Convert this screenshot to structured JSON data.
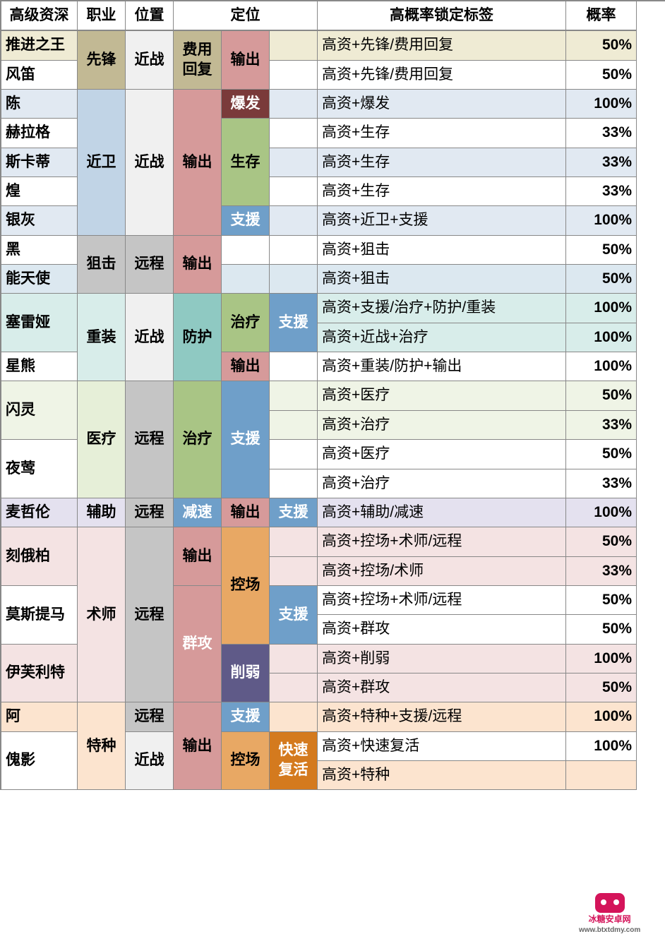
{
  "colors": {
    "hdr": "#ffffff",
    "white": "#ffffff",
    "tanLight": "#efebd4",
    "tanDark": "#c2b994",
    "grayLight": "#f0f0f0",
    "grayMed": "#c5c5c5",
    "blueVLight": "#e1e9f2",
    "blueLight": "#c1d4e6",
    "bluePale": "#dce8f0",
    "blueMid": "#6f9fc9",
    "pinkMed": "#d69a9a",
    "pinkPale": "#f4e3e3",
    "brownDark": "#7a3a3a",
    "greenPale": "#e6efd8",
    "greenMed": "#a9c585",
    "greenVPale": "#eff4e6",
    "tealPale": "#d8edea",
    "tealMed": "#8fc9c2",
    "orangePale": "#fce4cf",
    "orangeMed": "#e8a864",
    "orangeDark": "#d47a1e",
    "purpleMed": "#5f5a88",
    "lavPale": "#e4e1ef"
  },
  "headers": [
    "高级资深",
    "职业",
    "位置",
    "定位",
    "高概率锁定标签",
    "概率"
  ],
  "logo": {
    "name": "冰糖安卓网",
    "url": "www.btxtdmy.com"
  },
  "cells": [
    {
      "r": 1,
      "c": 1,
      "rs": 1,
      "cs": 1,
      "t": "高级资深",
      "cls": "hdr"
    },
    {
      "r": 1,
      "c": 2,
      "rs": 1,
      "cs": 1,
      "t": "职业",
      "cls": "hdr"
    },
    {
      "r": 1,
      "c": 3,
      "rs": 1,
      "cs": 1,
      "t": "位置",
      "cls": "hdr"
    },
    {
      "r": 1,
      "c": 4,
      "rs": 1,
      "cs": 3,
      "t": "定位",
      "cls": "hdr"
    },
    {
      "r": 1,
      "c": 7,
      "rs": 1,
      "cs": 1,
      "t": "高概率锁定标签",
      "cls": "hdr"
    },
    {
      "r": 1,
      "c": 8,
      "rs": 1,
      "cs": 1,
      "t": "概率",
      "cls": "hdr"
    },
    {
      "r": 2,
      "c": 1,
      "rs": 1,
      "cs": 1,
      "t": "推进之王",
      "bg": "tanLight",
      "cls": "bold"
    },
    {
      "r": 2,
      "c": 2,
      "rs": 2,
      "cs": 1,
      "t": "先锋",
      "bg": "tanDark",
      "cls": "ctr bold"
    },
    {
      "r": 2,
      "c": 3,
      "rs": 2,
      "cs": 1,
      "t": "近战",
      "bg": "grayLight",
      "cls": "ctr bold"
    },
    {
      "r": 2,
      "c": 4,
      "rs": 2,
      "cs": 1,
      "t": "费用回复",
      "bg": "tanDark",
      "cls": "ctr bold"
    },
    {
      "r": 2,
      "c": 5,
      "rs": 2,
      "cs": 1,
      "t": "输出",
      "bg": "pinkMed",
      "cls": "ctr bold"
    },
    {
      "r": 2,
      "c": 6,
      "rs": 1,
      "cs": 1,
      "t": "",
      "bg": "tanLight"
    },
    {
      "r": 2,
      "c": 7,
      "rs": 1,
      "cs": 1,
      "t": "高资+先锋/费用回复",
      "bg": "tanLight"
    },
    {
      "r": 2,
      "c": 8,
      "rs": 1,
      "cs": 1,
      "t": "50%",
      "bg": "tanLight",
      "cls": "bold rt"
    },
    {
      "r": 3,
      "c": 1,
      "rs": 1,
      "cs": 1,
      "t": "风笛",
      "bg": "white",
      "cls": "bold"
    },
    {
      "r": 3,
      "c": 6,
      "rs": 1,
      "cs": 1,
      "t": "",
      "bg": "white"
    },
    {
      "r": 3,
      "c": 7,
      "rs": 1,
      "cs": 1,
      "t": "高资+先锋/费用回复",
      "bg": "white"
    },
    {
      "r": 3,
      "c": 8,
      "rs": 1,
      "cs": 1,
      "t": "50%",
      "bg": "white",
      "cls": "bold rt"
    },
    {
      "r": 4,
      "c": 1,
      "rs": 1,
      "cs": 1,
      "t": "陈",
      "bg": "blueVLight",
      "cls": "bold"
    },
    {
      "r": 4,
      "c": 2,
      "rs": 5,
      "cs": 1,
      "t": "近卫",
      "bg": "blueLight",
      "cls": "ctr bold"
    },
    {
      "r": 4,
      "c": 3,
      "rs": 5,
      "cs": 1,
      "t": "近战",
      "bg": "grayLight",
      "cls": "ctr bold"
    },
    {
      "r": 4,
      "c": 4,
      "rs": 5,
      "cs": 1,
      "t": "输出",
      "bg": "pinkMed",
      "cls": "ctr bold"
    },
    {
      "r": 4,
      "c": 5,
      "rs": 1,
      "cs": 1,
      "t": "爆发",
      "bg": "brownDark",
      "cls": "ctr bold wt"
    },
    {
      "r": 4,
      "c": 6,
      "rs": 1,
      "cs": 1,
      "t": "",
      "bg": "blueVLight"
    },
    {
      "r": 4,
      "c": 7,
      "rs": 1,
      "cs": 1,
      "t": "高资+爆发",
      "bg": "blueVLight"
    },
    {
      "r": 4,
      "c": 8,
      "rs": 1,
      "cs": 1,
      "t": "100%",
      "bg": "blueVLight",
      "cls": "bold rt"
    },
    {
      "r": 5,
      "c": 1,
      "rs": 1,
      "cs": 1,
      "t": "赫拉格",
      "bg": "white",
      "cls": "bold"
    },
    {
      "r": 5,
      "c": 5,
      "rs": 3,
      "cs": 1,
      "t": "生存",
      "bg": "greenMed",
      "cls": "ctr bold"
    },
    {
      "r": 5,
      "c": 6,
      "rs": 1,
      "cs": 1,
      "t": "",
      "bg": "white"
    },
    {
      "r": 5,
      "c": 7,
      "rs": 1,
      "cs": 1,
      "t": "高资+生存",
      "bg": "white"
    },
    {
      "r": 5,
      "c": 8,
      "rs": 1,
      "cs": 1,
      "t": "33%",
      "bg": "white",
      "cls": "bold rt"
    },
    {
      "r": 6,
      "c": 1,
      "rs": 1,
      "cs": 1,
      "t": "斯卡蒂",
      "bg": "blueVLight",
      "cls": "bold"
    },
    {
      "r": 6,
      "c": 6,
      "rs": 1,
      "cs": 1,
      "t": "",
      "bg": "blueVLight"
    },
    {
      "r": 6,
      "c": 7,
      "rs": 1,
      "cs": 1,
      "t": "高资+生存",
      "bg": "blueVLight"
    },
    {
      "r": 6,
      "c": 8,
      "rs": 1,
      "cs": 1,
      "t": "33%",
      "bg": "blueVLight",
      "cls": "bold rt"
    },
    {
      "r": 7,
      "c": 1,
      "rs": 1,
      "cs": 1,
      "t": "煌",
      "bg": "white",
      "cls": "bold"
    },
    {
      "r": 7,
      "c": 6,
      "rs": 1,
      "cs": 1,
      "t": "",
      "bg": "white"
    },
    {
      "r": 7,
      "c": 7,
      "rs": 1,
      "cs": 1,
      "t": "高资+生存",
      "bg": "white"
    },
    {
      "r": 7,
      "c": 8,
      "rs": 1,
      "cs": 1,
      "t": "33%",
      "bg": "white",
      "cls": "bold rt"
    },
    {
      "r": 8,
      "c": 1,
      "rs": 1,
      "cs": 1,
      "t": "银灰",
      "bg": "blueVLight",
      "cls": "bold"
    },
    {
      "r": 8,
      "c": 5,
      "rs": 1,
      "cs": 1,
      "t": "支援",
      "bg": "blueMid",
      "cls": "ctr bold wt"
    },
    {
      "r": 8,
      "c": 6,
      "rs": 1,
      "cs": 1,
      "t": "",
      "bg": "blueVLight"
    },
    {
      "r": 8,
      "c": 7,
      "rs": 1,
      "cs": 1,
      "t": "高资+近卫+支援",
      "bg": "blueVLight"
    },
    {
      "r": 8,
      "c": 8,
      "rs": 1,
      "cs": 1,
      "t": "100%",
      "bg": "blueVLight",
      "cls": "bold rt"
    },
    {
      "r": 9,
      "c": 1,
      "rs": 1,
      "cs": 1,
      "t": "黑",
      "bg": "white",
      "cls": "bold"
    },
    {
      "r": 9,
      "c": 2,
      "rs": 2,
      "cs": 1,
      "t": "狙击",
      "bg": "grayMed",
      "cls": "ctr bold"
    },
    {
      "r": 9,
      "c": 3,
      "rs": 2,
      "cs": 1,
      "t": "远程",
      "bg": "grayMed",
      "cls": "ctr bold"
    },
    {
      "r": 9,
      "c": 4,
      "rs": 2,
      "cs": 1,
      "t": "输出",
      "bg": "pinkMed",
      "cls": "ctr bold"
    },
    {
      "r": 9,
      "c": 5,
      "rs": 1,
      "cs": 1,
      "t": "",
      "bg": "white"
    },
    {
      "r": 9,
      "c": 6,
      "rs": 1,
      "cs": 1,
      "t": "",
      "bg": "white"
    },
    {
      "r": 9,
      "c": 7,
      "rs": 1,
      "cs": 1,
      "t": "高资+狙击",
      "bg": "white"
    },
    {
      "r": 9,
      "c": 8,
      "rs": 1,
      "cs": 1,
      "t": "50%",
      "bg": "white",
      "cls": "bold rt"
    },
    {
      "r": 10,
      "c": 1,
      "rs": 1,
      "cs": 1,
      "t": "能天使",
      "bg": "bluePale",
      "cls": "bold"
    },
    {
      "r": 10,
      "c": 5,
      "rs": 1,
      "cs": 1,
      "t": "",
      "bg": "bluePale"
    },
    {
      "r": 10,
      "c": 6,
      "rs": 1,
      "cs": 1,
      "t": "",
      "bg": "bluePale"
    },
    {
      "r": 10,
      "c": 7,
      "rs": 1,
      "cs": 1,
      "t": "高资+狙击",
      "bg": "bluePale"
    },
    {
      "r": 10,
      "c": 8,
      "rs": 1,
      "cs": 1,
      "t": "50%",
      "bg": "bluePale",
      "cls": "bold rt"
    },
    {
      "r": 11,
      "c": 1,
      "rs": 2,
      "cs": 1,
      "t": "塞雷娅",
      "bg": "tealPale",
      "cls": "bold"
    },
    {
      "r": 11,
      "c": 2,
      "rs": 3,
      "cs": 1,
      "t": "重装",
      "bg": "tealPale",
      "cls": "ctr bold"
    },
    {
      "r": 11,
      "c": 3,
      "rs": 3,
      "cs": 1,
      "t": "近战",
      "bg": "grayLight",
      "cls": "ctr bold"
    },
    {
      "r": 11,
      "c": 4,
      "rs": 3,
      "cs": 1,
      "t": "防护",
      "bg": "tealMed",
      "cls": "ctr bold"
    },
    {
      "r": 11,
      "c": 5,
      "rs": 2,
      "cs": 1,
      "t": "治疗",
      "bg": "greenMed",
      "cls": "ctr bold"
    },
    {
      "r": 11,
      "c": 6,
      "rs": 2,
      "cs": 1,
      "t": "支援",
      "bg": "blueMid",
      "cls": "ctr bold wt"
    },
    {
      "r": 11,
      "c": 7,
      "rs": 1,
      "cs": 1,
      "t": "高资+支援/治疗+防护/重装",
      "bg": "tealPale"
    },
    {
      "r": 11,
      "c": 8,
      "rs": 1,
      "cs": 1,
      "t": "100%",
      "bg": "tealPale",
      "cls": "bold rt"
    },
    {
      "r": 12,
      "c": 7,
      "rs": 1,
      "cs": 1,
      "t": "高资+近战+治疗",
      "bg": "tealPale"
    },
    {
      "r": 12,
      "c": 8,
      "rs": 1,
      "cs": 1,
      "t": "100%",
      "bg": "tealPale",
      "cls": "bold rt"
    },
    {
      "r": 13,
      "c": 1,
      "rs": 1,
      "cs": 1,
      "t": "星熊",
      "bg": "white",
      "cls": "bold"
    },
    {
      "r": 13,
      "c": 5,
      "rs": 1,
      "cs": 1,
      "t": "输出",
      "bg": "pinkMed",
      "cls": "ctr bold"
    },
    {
      "r": 13,
      "c": 6,
      "rs": 1,
      "cs": 1,
      "t": "",
      "bg": "white"
    },
    {
      "r": 13,
      "c": 7,
      "rs": 1,
      "cs": 1,
      "t": "高资+重装/防护+输出",
      "bg": "white"
    },
    {
      "r": 13,
      "c": 8,
      "rs": 1,
      "cs": 1,
      "t": "100%",
      "bg": "white",
      "cls": "bold rt"
    },
    {
      "r": 14,
      "c": 1,
      "rs": 2,
      "cs": 1,
      "t": "闪灵",
      "bg": "greenVPale",
      "cls": "bold"
    },
    {
      "r": 14,
      "c": 2,
      "rs": 4,
      "cs": 1,
      "t": "医疗",
      "bg": "greenPale",
      "cls": "ctr bold"
    },
    {
      "r": 14,
      "c": 3,
      "rs": 4,
      "cs": 1,
      "t": "远程",
      "bg": "grayMed",
      "cls": "ctr bold"
    },
    {
      "r": 14,
      "c": 4,
      "rs": 4,
      "cs": 1,
      "t": "治疗",
      "bg": "greenMed",
      "cls": "ctr bold"
    },
    {
      "r": 14,
      "c": 5,
      "rs": 4,
      "cs": 1,
      "t": "支援",
      "bg": "blueMid",
      "cls": "ctr bold wt"
    },
    {
      "r": 14,
      "c": 6,
      "rs": 1,
      "cs": 1,
      "t": "",
      "bg": "greenVPale"
    },
    {
      "r": 14,
      "c": 7,
      "rs": 1,
      "cs": 1,
      "t": "高资+医疗",
      "bg": "greenVPale"
    },
    {
      "r": 14,
      "c": 8,
      "rs": 1,
      "cs": 1,
      "t": "50%",
      "bg": "greenVPale",
      "cls": "bold rt"
    },
    {
      "r": 15,
      "c": 6,
      "rs": 1,
      "cs": 1,
      "t": "",
      "bg": "greenVPale"
    },
    {
      "r": 15,
      "c": 7,
      "rs": 1,
      "cs": 1,
      "t": "高资+治疗",
      "bg": "greenVPale"
    },
    {
      "r": 15,
      "c": 8,
      "rs": 1,
      "cs": 1,
      "t": "33%",
      "bg": "greenVPale",
      "cls": "bold rt"
    },
    {
      "r": 16,
      "c": 1,
      "rs": 2,
      "cs": 1,
      "t": "夜莺",
      "bg": "white",
      "cls": "bold"
    },
    {
      "r": 16,
      "c": 6,
      "rs": 1,
      "cs": 1,
      "t": "",
      "bg": "white"
    },
    {
      "r": 16,
      "c": 7,
      "rs": 1,
      "cs": 1,
      "t": "高资+医疗",
      "bg": "white"
    },
    {
      "r": 16,
      "c": 8,
      "rs": 1,
      "cs": 1,
      "t": "50%",
      "bg": "white",
      "cls": "bold rt"
    },
    {
      "r": 17,
      "c": 6,
      "rs": 1,
      "cs": 1,
      "t": "",
      "bg": "white"
    },
    {
      "r": 17,
      "c": 7,
      "rs": 1,
      "cs": 1,
      "t": "高资+治疗",
      "bg": "white"
    },
    {
      "r": 17,
      "c": 8,
      "rs": 1,
      "cs": 1,
      "t": "33%",
      "bg": "white",
      "cls": "bold rt"
    },
    {
      "r": 18,
      "c": 1,
      "rs": 1,
      "cs": 1,
      "t": "麦哲伦",
      "bg": "lavPale",
      "cls": "bold"
    },
    {
      "r": 18,
      "c": 2,
      "rs": 1,
      "cs": 1,
      "t": "辅助",
      "bg": "lavPale",
      "cls": "ctr bold"
    },
    {
      "r": 18,
      "c": 3,
      "rs": 1,
      "cs": 1,
      "t": "远程",
      "bg": "grayMed",
      "cls": "ctr bold"
    },
    {
      "r": 18,
      "c": 4,
      "rs": 1,
      "cs": 1,
      "t": "减速",
      "bg": "blueMid",
      "cls": "ctr bold wt"
    },
    {
      "r": 18,
      "c": 5,
      "rs": 1,
      "cs": 1,
      "t": "输出",
      "bg": "pinkMed",
      "cls": "ctr bold"
    },
    {
      "r": 18,
      "c": 6,
      "rs": 1,
      "cs": 1,
      "t": "支援",
      "bg": "blueMid",
      "cls": "ctr bold wt"
    },
    {
      "r": 18,
      "c": 7,
      "rs": 1,
      "cs": 1,
      "t": "高资+辅助/减速",
      "bg": "lavPale"
    },
    {
      "r": 18,
      "c": 8,
      "rs": 1,
      "cs": 1,
      "t": "100%",
      "bg": "lavPale",
      "cls": "bold rt"
    },
    {
      "r": 19,
      "c": 1,
      "rs": 2,
      "cs": 1,
      "t": "刻俄柏",
      "bg": "pinkPale",
      "cls": "bold"
    },
    {
      "r": 19,
      "c": 2,
      "rs": 6,
      "cs": 1,
      "t": "术师",
      "bg": "pinkPale",
      "cls": "ctr bold"
    },
    {
      "r": 19,
      "c": 3,
      "rs": 6,
      "cs": 1,
      "t": "远程",
      "bg": "grayMed",
      "cls": "ctr bold"
    },
    {
      "r": 19,
      "c": 4,
      "rs": 2,
      "cs": 1,
      "t": "输出",
      "bg": "pinkMed",
      "cls": "ctr bold"
    },
    {
      "r": 19,
      "c": 5,
      "rs": 4,
      "cs": 1,
      "t": "控场",
      "bg": "orangeMed",
      "cls": "ctr bold"
    },
    {
      "r": 19,
      "c": 6,
      "rs": 1,
      "cs": 1,
      "t": "",
      "bg": "pinkPale"
    },
    {
      "r": 19,
      "c": 7,
      "rs": 1,
      "cs": 1,
      "t": "高资+控场+术师/远程",
      "bg": "pinkPale"
    },
    {
      "r": 19,
      "c": 8,
      "rs": 1,
      "cs": 1,
      "t": "50%",
      "bg": "pinkPale",
      "cls": "bold rt"
    },
    {
      "r": 20,
      "c": 6,
      "rs": 1,
      "cs": 1,
      "t": "",
      "bg": "pinkPale"
    },
    {
      "r": 20,
      "c": 7,
      "rs": 1,
      "cs": 1,
      "t": "高资+控场/术师",
      "bg": "pinkPale"
    },
    {
      "r": 20,
      "c": 8,
      "rs": 1,
      "cs": 1,
      "t": "33%",
      "bg": "pinkPale",
      "cls": "bold rt"
    },
    {
      "r": 21,
      "c": 1,
      "rs": 2,
      "cs": 1,
      "t": "莫斯提马",
      "bg": "white",
      "cls": "bold"
    },
    {
      "r": 21,
      "c": 4,
      "rs": 4,
      "cs": 1,
      "t": "群攻",
      "bg": "pinkMed",
      "cls": "ctr bold wt"
    },
    {
      "r": 21,
      "c": 6,
      "rs": 2,
      "cs": 1,
      "t": "支援",
      "bg": "blueMid",
      "cls": "ctr bold wt"
    },
    {
      "r": 21,
      "c": 7,
      "rs": 1,
      "cs": 1,
      "t": "高资+控场+术师/远程",
      "bg": "white"
    },
    {
      "r": 21,
      "c": 8,
      "rs": 1,
      "cs": 1,
      "t": "50%",
      "bg": "white",
      "cls": "bold rt"
    },
    {
      "r": 22,
      "c": 7,
      "rs": 1,
      "cs": 1,
      "t": "高资+群攻",
      "bg": "white"
    },
    {
      "r": 22,
      "c": 8,
      "rs": 1,
      "cs": 1,
      "t": "50%",
      "bg": "white",
      "cls": "bold rt"
    },
    {
      "r": 23,
      "c": 1,
      "rs": 2,
      "cs": 1,
      "t": "伊芙利特",
      "bg": "pinkPale",
      "cls": "bold"
    },
    {
      "r": 23,
      "c": 5,
      "rs": 2,
      "cs": 1,
      "t": "削弱",
      "bg": "purpleMed",
      "cls": "ctr bold wt"
    },
    {
      "r": 23,
      "c": 6,
      "rs": 1,
      "cs": 1,
      "t": "",
      "bg": "pinkPale"
    },
    {
      "r": 23,
      "c": 7,
      "rs": 1,
      "cs": 1,
      "t": "高资+削弱",
      "bg": "pinkPale"
    },
    {
      "r": 23,
      "c": 8,
      "rs": 1,
      "cs": 1,
      "t": "100%",
      "bg": "pinkPale",
      "cls": "bold rt"
    },
    {
      "r": 24,
      "c": 6,
      "rs": 1,
      "cs": 1,
      "t": "",
      "bg": "pinkPale"
    },
    {
      "r": 24,
      "c": 7,
      "rs": 1,
      "cs": 1,
      "t": "高资+群攻",
      "bg": "pinkPale"
    },
    {
      "r": 24,
      "c": 8,
      "rs": 1,
      "cs": 1,
      "t": "50%",
      "bg": "pinkPale",
      "cls": "bold rt"
    },
    {
      "r": 25,
      "c": 1,
      "rs": 1,
      "cs": 1,
      "t": "阿",
      "bg": "orangePale",
      "cls": "bold"
    },
    {
      "r": 25,
      "c": 2,
      "rs": 3,
      "cs": 1,
      "t": "特种",
      "bg": "orangePale",
      "cls": "ctr bold"
    },
    {
      "r": 25,
      "c": 3,
      "rs": 1,
      "cs": 1,
      "t": "远程",
      "bg": "grayMed",
      "cls": "ctr bold"
    },
    {
      "r": 25,
      "c": 4,
      "rs": 3,
      "cs": 1,
      "t": "输出",
      "bg": "pinkMed",
      "cls": "ctr bold"
    },
    {
      "r": 25,
      "c": 5,
      "rs": 1,
      "cs": 1,
      "t": "支援",
      "bg": "blueMid",
      "cls": "ctr bold wt"
    },
    {
      "r": 25,
      "c": 6,
      "rs": 1,
      "cs": 1,
      "t": "",
      "bg": "orangePale"
    },
    {
      "r": 25,
      "c": 7,
      "rs": 1,
      "cs": 1,
      "t": "高资+特种+支援/远程",
      "bg": "orangePale"
    },
    {
      "r": 25,
      "c": 8,
      "rs": 1,
      "cs": 1,
      "t": "100%",
      "bg": "orangePale",
      "cls": "bold rt"
    },
    {
      "r": 26,
      "c": 1,
      "rs": 2,
      "cs": 1,
      "t": "傀影",
      "bg": "white",
      "cls": "bold"
    },
    {
      "r": 26,
      "c": 3,
      "rs": 2,
      "cs": 1,
      "t": "近战",
      "bg": "grayLight",
      "cls": "ctr bold"
    },
    {
      "r": 26,
      "c": 5,
      "rs": 2,
      "cs": 1,
      "t": "控场",
      "bg": "orangeMed",
      "cls": "ctr bold"
    },
    {
      "r": 26,
      "c": 6,
      "rs": 2,
      "cs": 1,
      "t": "快速复活",
      "bg": "orangeDark",
      "cls": "ctr bold wt"
    },
    {
      "r": 26,
      "c": 7,
      "rs": 1,
      "cs": 1,
      "t": "高资+快速复活",
      "bg": "white"
    },
    {
      "r": 26,
      "c": 8,
      "rs": 1,
      "cs": 1,
      "t": "100%",
      "bg": "white",
      "cls": "bold rt"
    },
    {
      "r": 27,
      "c": 7,
      "rs": 1,
      "cs": 1,
      "t": "高资+特种",
      "bg": "orangePale"
    },
    {
      "r": 27,
      "c": 8,
      "rs": 1,
      "cs": 1,
      "t": "",
      "bg": "orangePale"
    }
  ]
}
